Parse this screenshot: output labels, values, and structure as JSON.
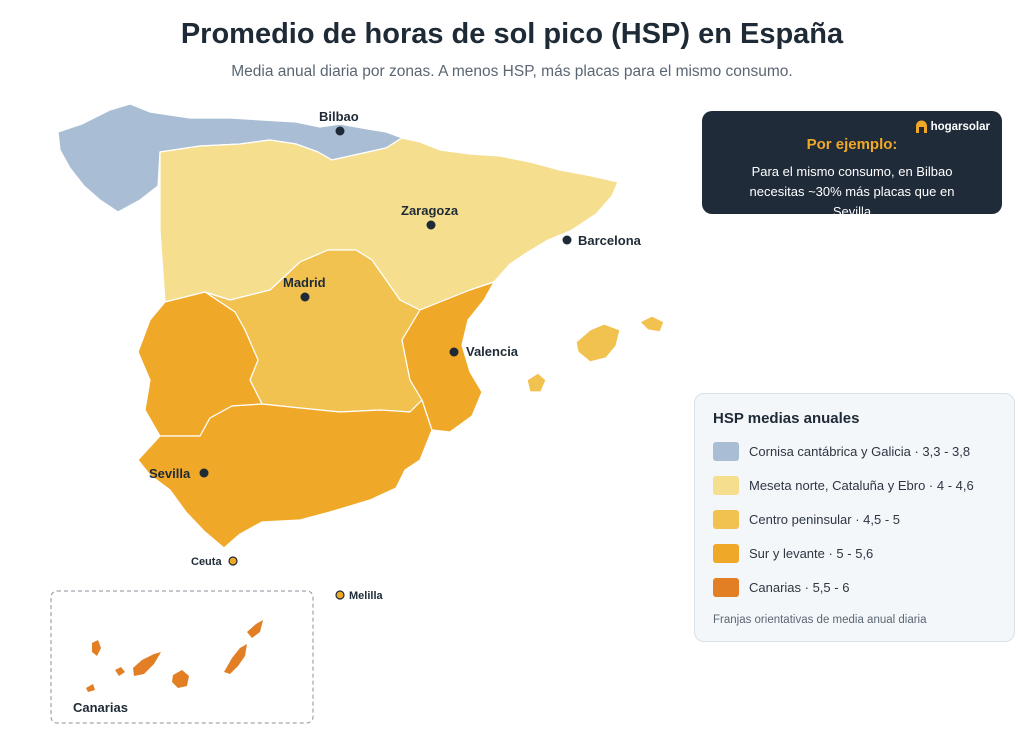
{
  "title": "Promedio de horas de sol pico (HSP) en España",
  "subtitle": "Media anual diaria por zonas. A menos HSP, más placas para el mismo consumo.",
  "info": {
    "brand": "hogarsolar",
    "heading": "Por ejemplo:",
    "text": "Para el mismo consumo, en Bilbao necesitas ~30% más placas que en Sevilla"
  },
  "legend": {
    "title": "HSP medias anuales",
    "items": [
      {
        "label": "Cornisa cantábrica y Galicia · 3,3 - 3,8",
        "color": "#a9bed4"
      },
      {
        "label": "Meseta norte, Cataluña y Ebro · 4 - 4,6",
        "color": "#f5de8e"
      },
      {
        "label": "Centro peninsular · 4,5 - 5",
        "color": "#f2c250"
      },
      {
        "label": "Sur y levante · 5 - 5,6",
        "color": "#f0a828"
      },
      {
        "label": "Canarias · 5,5 - 6",
        "color": "#e27e24"
      }
    ],
    "note": "Franjas orientativas de media anual diaria"
  },
  "cities": {
    "bilbao": "Bilbao",
    "zaragoza": "Zaragoza",
    "barcelona": "Barcelona",
    "madrid": "Madrid",
    "valencia": "Valencia",
    "sevilla": "Sevilla",
    "ceuta": "Ceuta",
    "melilla": "Melilla"
  },
  "inset_label": "Canarias"
}
